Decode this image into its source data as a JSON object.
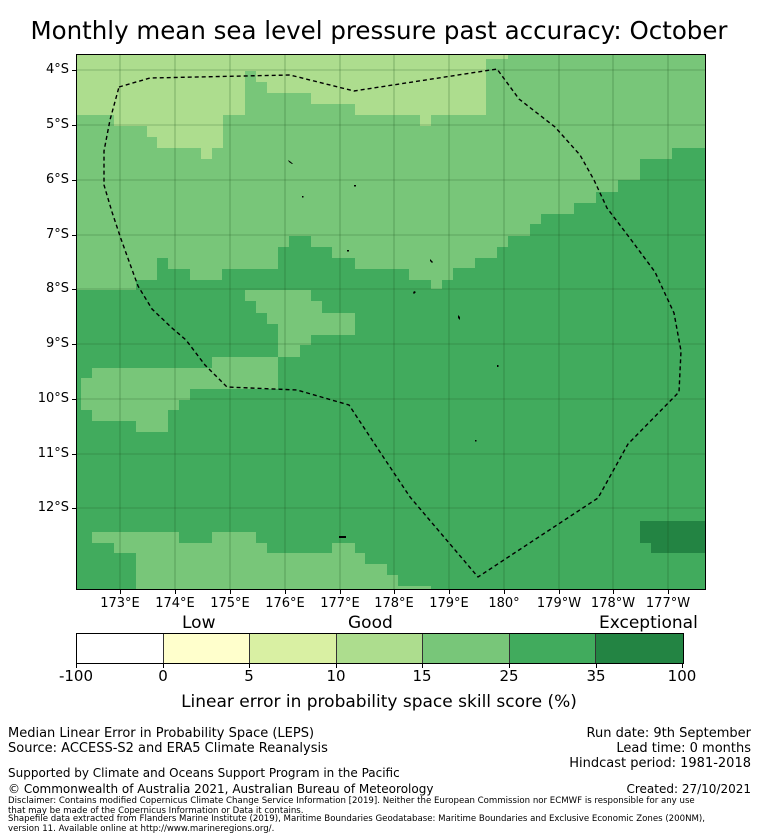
{
  "title": "Monthly mean sea level pressure past accuracy: October",
  "map": {
    "latitude_labels": [
      "4°S",
      "5°S",
      "6°S",
      "7°S",
      "8°S",
      "9°S",
      "10°S",
      "11°S",
      "12°S"
    ],
    "longitude_labels": [
      "173°E",
      "174°E",
      "175°E",
      "176°E",
      "177°E",
      "178°E",
      "179°E",
      "180°",
      "179°W",
      "178°W",
      "177°W"
    ],
    "region": "Tuvalu Exclusive Economic Zone (dashed outline)"
  },
  "colorbar": {
    "categories": [
      "Low",
      "Good",
      "Exceptional"
    ],
    "tick_labels": [
      "-100",
      "0",
      "5",
      "10",
      "15",
      "25",
      "35",
      "100"
    ],
    "segments": [
      {
        "from": -100,
        "to": 0,
        "color": "#ffffff"
      },
      {
        "from": 0,
        "to": 5,
        "color": "#ffffcc"
      },
      {
        "from": 5,
        "to": 10,
        "color": "#d9f0a3"
      },
      {
        "from": 10,
        "to": 15,
        "color": "#addd8e"
      },
      {
        "from": 15,
        "to": 25,
        "color": "#78c679"
      },
      {
        "from": 25,
        "to": 35,
        "color": "#41ab5d"
      },
      {
        "from": 35,
        "to": 100,
        "color": "#238443"
      }
    ],
    "label": "Linear error in probability space skill score (%)"
  },
  "info": {
    "line1": "Median Linear Error in Probability Space (LEPS)",
    "line2": "Source: ACCESS-S2 and ERA5 Climate Reanalysis",
    "run_date": "Run date: 9th September",
    "lead_time": "Lead time: 0 months",
    "hindcast": "Hindcast period: 1981-2018",
    "supported": "Supported by Climate and Oceans Support Program in the Pacific",
    "copyright": "© Commonwealth of Australia 2021, Australian Bureau of Meteorology",
    "created": "Created: 27/10/2021",
    "disclaimer1": "Disclaimer: Contains modified Copernicus Climate Change Service Information [2019]. Neither the European Commission nor ECMWF is responsible for any use",
    "disclaimer2": "that may be made of the Copernicus Information or Data it contains.",
    "shapefile1": "Shapefile data extracted from Flanders Marine Institute (2019), Maritime Boundaries Geodatabase: Maritime Boundaries and Exclusive Economic Zones (200NM),",
    "shapefile2": "version 11. Available online at http://www.marineregions.org/."
  }
}
